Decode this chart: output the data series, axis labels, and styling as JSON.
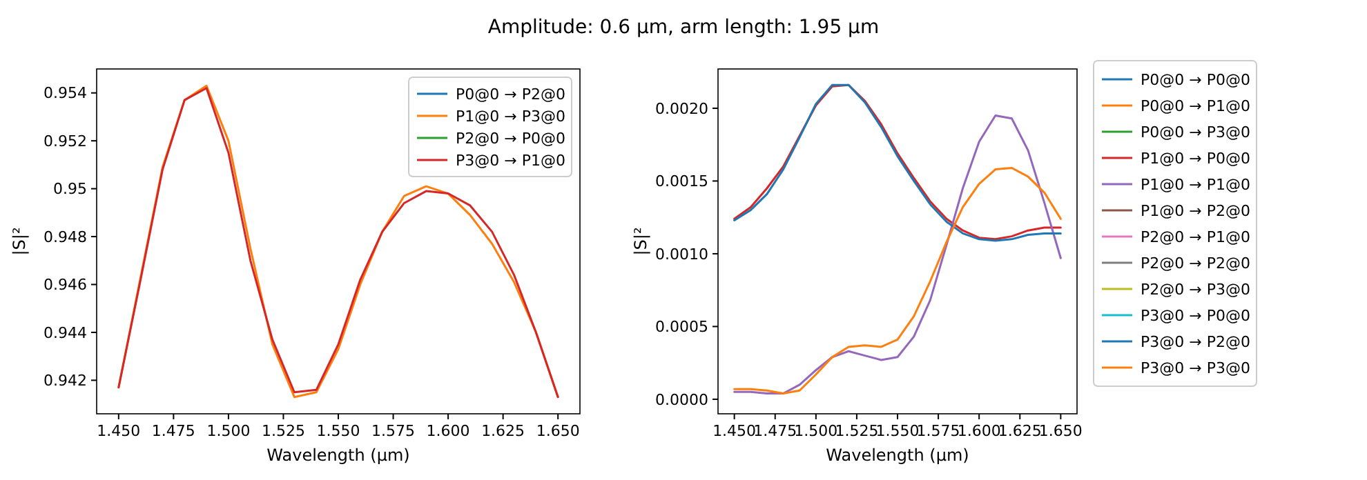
{
  "chart_data": [
    {
      "type": "line",
      "title": "Amplitude: 0.6 μm, arm length: 1.95 μm",
      "xlabel": "Wavelength (μm)",
      "ylabel": "|S|²",
      "x": [
        1.45,
        1.46,
        1.47,
        1.48,
        1.49,
        1.5,
        1.51,
        1.52,
        1.53,
        1.54,
        1.55,
        1.56,
        1.57,
        1.58,
        1.59,
        1.6,
        1.61,
        1.62,
        1.63,
        1.64,
        1.65
      ],
      "xlim": [
        1.44,
        1.66
      ],
      "xticks": [
        {
          "value": 1.45,
          "label": "1.450"
        },
        {
          "value": 1.475,
          "label": "1.475"
        },
        {
          "value": 1.5,
          "label": "1.500"
        },
        {
          "value": 1.525,
          "label": "1.525"
        },
        {
          "value": 1.55,
          "label": "1.550"
        },
        {
          "value": 1.575,
          "label": "1.575"
        },
        {
          "value": 1.6,
          "label": "1.600"
        },
        {
          "value": 1.625,
          "label": "1.625"
        },
        {
          "value": 1.65,
          "label": "1.650"
        }
      ],
      "ylim": [
        0.9406,
        0.955
      ],
      "yticks": [
        0.942,
        0.944,
        0.946,
        0.948,
        0.95,
        0.952,
        0.954
      ],
      "legend": "top right",
      "series": [
        {
          "name": "P0@0 → P2@0",
          "color": "#1f77b4",
          "values": [
            null,
            null,
            null,
            null,
            null,
            null,
            null,
            null,
            null,
            null,
            null,
            null,
            null,
            null,
            null,
            null,
            null,
            null,
            null,
            null,
            null
          ]
        },
        {
          "name": "P1@0 → P3@0",
          "color": "#ff7f0e",
          "values": [
            0.9417,
            0.9463,
            0.9509,
            0.9537,
            0.9543,
            0.952,
            0.9475,
            0.9435,
            0.9413,
            0.9415,
            0.9433,
            0.946,
            0.9482,
            0.9497,
            0.9501,
            0.9498,
            0.9489,
            0.9477,
            0.9461,
            0.944,
            0.9413
          ]
        },
        {
          "name": "P2@0 → P0@0",
          "color": "#2ca02c",
          "values": [
            null,
            null,
            null,
            null,
            null,
            null,
            null,
            null,
            null,
            null,
            null,
            null,
            null,
            null,
            null,
            null,
            null,
            null,
            null,
            null,
            null
          ]
        },
        {
          "name": "P3@0 → P1@0",
          "color": "#d62728",
          "values": [
            0.9417,
            0.9462,
            0.9508,
            0.9537,
            0.9542,
            0.9515,
            0.947,
            0.9437,
            0.9415,
            0.9416,
            0.9435,
            0.9462,
            0.9482,
            0.9494,
            0.9499,
            0.9498,
            0.9493,
            0.9482,
            0.9464,
            0.944,
            0.9413
          ]
        }
      ]
    },
    {
      "type": "line",
      "xlabel": "Wavelength (μm)",
      "ylabel": "|S|²",
      "x": [
        1.45,
        1.46,
        1.47,
        1.48,
        1.49,
        1.5,
        1.51,
        1.52,
        1.53,
        1.54,
        1.55,
        1.56,
        1.57,
        1.58,
        1.59,
        1.6,
        1.61,
        1.62,
        1.63,
        1.64,
        1.65
      ],
      "xlim": [
        1.44,
        1.66
      ],
      "xticks": [
        {
          "value": 1.45,
          "label": "1.450"
        },
        {
          "value": 1.475,
          "label": "1.475"
        },
        {
          "value": 1.5,
          "label": "1.500"
        },
        {
          "value": 1.525,
          "label": "1.525"
        },
        {
          "value": 1.55,
          "label": "1.550"
        },
        {
          "value": 1.575,
          "label": "1.575"
        },
        {
          "value": 1.6,
          "label": "1.600"
        },
        {
          "value": 1.625,
          "label": "1.625"
        },
        {
          "value": 1.65,
          "label": "1.650"
        }
      ],
      "ylim": [
        -0.0001,
        0.00227
      ],
      "yticks": [
        {
          "value": 0,
          "label": "0.0000"
        },
        {
          "value": 0.0005,
          "label": "0.0005"
        },
        {
          "value": 0.001,
          "label": "0.0010"
        },
        {
          "value": 0.0015,
          "label": "0.0015"
        },
        {
          "value": 0.002,
          "label": "0.0020"
        }
      ],
      "legend": "right",
      "series": [
        {
          "name": "P0@0 → P0@0",
          "color": "#1f77b4",
          "values": [
            null,
            null,
            null,
            null,
            null,
            null,
            null,
            null,
            null,
            null,
            null,
            null,
            null,
            null,
            null,
            null,
            null,
            null,
            null,
            null,
            null
          ]
        },
        {
          "name": "P0@0 → P1@0",
          "color": "#ff7f0e",
          "values": [
            null,
            null,
            null,
            null,
            null,
            null,
            null,
            null,
            null,
            null,
            null,
            null,
            null,
            null,
            null,
            null,
            null,
            null,
            null,
            null,
            null
          ]
        },
        {
          "name": "P0@0 → P3@0",
          "color": "#2ca02c",
          "values": [
            null,
            null,
            null,
            null,
            null,
            null,
            null,
            null,
            null,
            null,
            null,
            null,
            null,
            null,
            null,
            null,
            null,
            null,
            null,
            null,
            null
          ]
        },
        {
          "name": "P1@0 → P0@0",
          "color": "#d62728",
          "values": [
            0.00124,
            0.00132,
            0.00145,
            0.0016,
            0.00181,
            0.00202,
            0.00215,
            0.00216,
            0.00205,
            0.00189,
            0.00169,
            0.00152,
            0.00136,
            0.00124,
            0.00116,
            0.00111,
            0.0011,
            0.00112,
            0.00116,
            0.00118,
            0.00118
          ]
        },
        {
          "name": "P1@0 → P1@0",
          "color": "#9467bd",
          "values": [
            5e-05,
            5e-05,
            4e-05,
            4e-05,
            0.0001,
            0.0002,
            0.00029,
            0.00033,
            0.0003,
            0.00027,
            0.00029,
            0.00043,
            0.00068,
            0.00106,
            0.00145,
            0.00177,
            0.00195,
            0.00193,
            0.00171,
            0.00135,
            0.00097
          ]
        },
        {
          "name": "P1@0 → P2@0",
          "color": "#8c564b",
          "values": [
            null,
            null,
            null,
            null,
            null,
            null,
            null,
            null,
            null,
            null,
            null,
            null,
            null,
            null,
            null,
            null,
            null,
            null,
            null,
            null,
            null
          ]
        },
        {
          "name": "P2@0 → P1@0",
          "color": "#e377c2",
          "values": [
            null,
            null,
            null,
            null,
            null,
            null,
            null,
            null,
            null,
            null,
            null,
            null,
            null,
            null,
            null,
            null,
            null,
            null,
            null,
            null,
            null
          ]
        },
        {
          "name": "P2@0 → P2@0",
          "color": "#7f7f7f",
          "values": [
            null,
            null,
            null,
            null,
            null,
            null,
            null,
            null,
            null,
            null,
            null,
            null,
            null,
            null,
            null,
            null,
            null,
            null,
            null,
            null,
            null
          ]
        },
        {
          "name": "P2@0 → P3@0",
          "color": "#bcbd22",
          "values": [
            null,
            null,
            null,
            null,
            null,
            null,
            null,
            null,
            null,
            null,
            null,
            null,
            null,
            null,
            null,
            null,
            null,
            null,
            null,
            null,
            null
          ]
        },
        {
          "name": "P3@0 → P0@0",
          "color": "#17becf",
          "values": [
            null,
            null,
            null,
            null,
            null,
            null,
            null,
            null,
            null,
            null,
            null,
            null,
            null,
            null,
            null,
            null,
            null,
            null,
            null,
            null,
            null
          ]
        },
        {
          "name": "P3@0 → P2@0",
          "color": "#1f77b4",
          "values": [
            0.00123,
            0.0013,
            0.00141,
            0.00158,
            0.0018,
            0.00203,
            0.00216,
            0.00216,
            0.00204,
            0.00187,
            0.00167,
            0.0015,
            0.00134,
            0.00122,
            0.00114,
            0.0011,
            0.00109,
            0.0011,
            0.00113,
            0.00114,
            0.00114
          ]
        },
        {
          "name": "P3@0 → P3@0",
          "color": "#ff7f0e",
          "values": [
            7e-05,
            7e-05,
            6e-05,
            4e-05,
            6e-05,
            0.00017,
            0.00029,
            0.00036,
            0.00037,
            0.00036,
            0.00041,
            0.00057,
            0.00081,
            0.00108,
            0.00132,
            0.00148,
            0.00158,
            0.00159,
            0.00153,
            0.00142,
            0.00124
          ]
        }
      ]
    }
  ]
}
